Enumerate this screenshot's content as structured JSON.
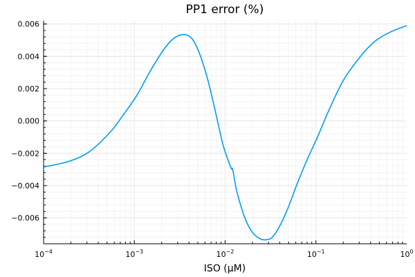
{
  "chart_data": {
    "type": "line",
    "title": "PP1 error (%)",
    "xlabel": "ISO (µM)",
    "ylabel": "",
    "xscale": "log",
    "xlim": [
      0.0001,
      1
    ],
    "ylim": [
      -0.0076,
      0.0062
    ],
    "grid": true,
    "legend": "none",
    "x_ticks": [
      {
        "value": 0.0001,
        "base": "10",
        "exp": "−4"
      },
      {
        "value": 0.001,
        "base": "10",
        "exp": "−3"
      },
      {
        "value": 0.01,
        "base": "10",
        "exp": "−2"
      },
      {
        "value": 0.1,
        "base": "10",
        "exp": "−1"
      },
      {
        "value": 1,
        "base": "10",
        "exp": "0"
      }
    ],
    "y_ticks": [
      {
        "value": 0.006,
        "label": "0.006"
      },
      {
        "value": 0.004,
        "label": "0.004"
      },
      {
        "value": 0.002,
        "label": "0.002"
      },
      {
        "value": 0.0,
        "label": "0.000"
      },
      {
        "value": -0.002,
        "label": "−0.002"
      },
      {
        "value": -0.004,
        "label": "−0.004"
      },
      {
        "value": -0.006,
        "label": "−0.006"
      }
    ],
    "series": [
      {
        "name": "PP1 error",
        "color": "#009af9",
        "x": [
          0.0001,
          0.00019,
          0.00032,
          0.00054,
          0.00076,
          0.00107,
          0.0015,
          0.0021,
          0.0027,
          0.0035,
          0.0043,
          0.0052,
          0.0064,
          0.0078,
          0.0095,
          0.0116,
          0.0121,
          0.0135,
          0.0165,
          0.02,
          0.0245,
          0.0284,
          0.033,
          0.04,
          0.05,
          0.062,
          0.08,
          0.104,
          0.14,
          0.2,
          0.3,
          0.44,
          0.66,
          1.0
        ],
        "y": [
          -0.00285,
          -0.0025,
          -0.0019,
          -0.0007,
          0.0004,
          0.0016,
          0.0031,
          0.0044,
          0.0051,
          0.00535,
          0.0051,
          0.0042,
          0.0026,
          0.0006,
          -0.0015,
          -0.0029,
          -0.003,
          -0.0044,
          -0.006,
          -0.0069,
          -0.0073,
          -0.00735,
          -0.0072,
          -0.0065,
          -0.0053,
          -0.0039,
          -0.0024,
          -0.001,
          0.0007,
          0.0025,
          0.0039,
          0.0049,
          0.0055,
          0.0059
        ]
      }
    ]
  }
}
